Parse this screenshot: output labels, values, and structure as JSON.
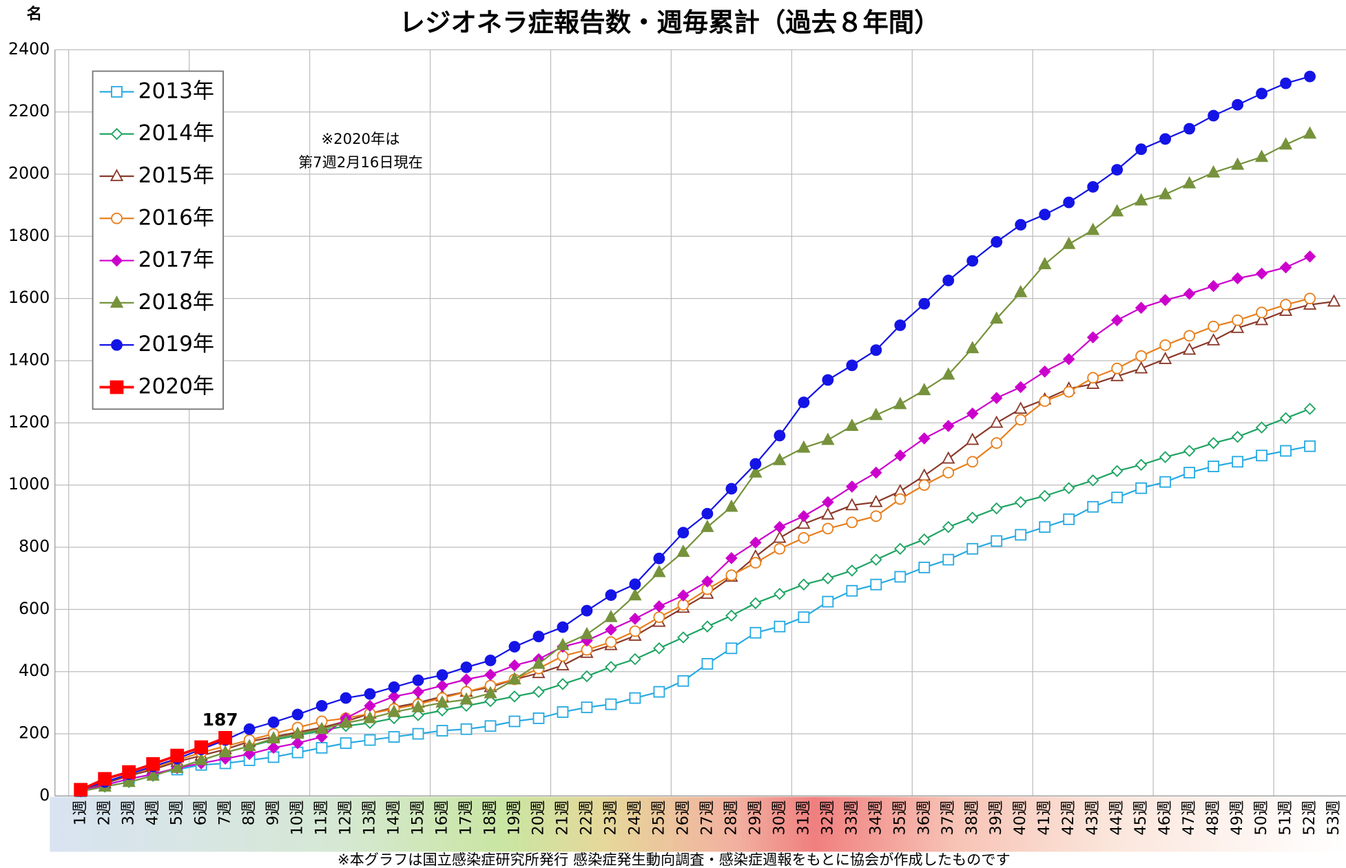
{
  "chart_data": {
    "type": "line",
    "title": "レジオネラ症報告数・週毎累計（過去８年間）",
    "y_unit": "名",
    "annotation": [
      "※2020年は",
      "第7週2月16日現在"
    ],
    "footnote": "※本グラフは国立感染症研究所発行 感染症発生動向調査・感染症週報をもとに協会が作成したものです",
    "categories": [
      "1週",
      "2週",
      "3週",
      "4週",
      "5週",
      "6週",
      "7週",
      "8週",
      "9週",
      "10週",
      "11週",
      "12週",
      "13週",
      "14週",
      "15週",
      "16週",
      "17週",
      "18週",
      "19週",
      "20週",
      "21週",
      "22週",
      "23週",
      "24週",
      "25週",
      "26週",
      "27週",
      "28週",
      "29週",
      "30週",
      "31週",
      "32週",
      "33週",
      "34週",
      "35週",
      "36週",
      "37週",
      "38週",
      "39週",
      "40週",
      "41週",
      "42週",
      "43週",
      "44週",
      "45週",
      "46週",
      "47週",
      "48週",
      "49週",
      "50週",
      "51週",
      "52週",
      "53週"
    ],
    "ylim": [
      0,
      2400
    ],
    "yticks": [
      0,
      200,
      400,
      600,
      800,
      1000,
      1200,
      1400,
      1600,
      1800,
      2000,
      2200,
      2400
    ],
    "grid": true,
    "legend": "upper left",
    "series": [
      {
        "name": "2013年",
        "color": "#29abe2",
        "marker": "square",
        "filled": false,
        "values": [
          15,
          35,
          55,
          70,
          85,
          100,
          105,
          115,
          125,
          140,
          155,
          170,
          180,
          190,
          200,
          210,
          215,
          225,
          240,
          250,
          270,
          285,
          295,
          315,
          335,
          370,
          425,
          475,
          525,
          545,
          575,
          625,
          660,
          680,
          705,
          735,
          760,
          795,
          820,
          840,
          865,
          890,
          930,
          960,
          990,
          1010,
          1040,
          1060,
          1075,
          1095,
          1110,
          1125,
          null
        ]
      },
      {
        "name": "2014年",
        "color": "#1fa463",
        "marker": "diamond",
        "filled": false,
        "values": [
          15,
          30,
          45,
          65,
          90,
          115,
          140,
          160,
          180,
          195,
          210,
          225,
          235,
          250,
          260,
          275,
          290,
          305,
          320,
          335,
          360,
          385,
          415,
          440,
          475,
          510,
          545,
          580,
          620,
          650,
          680,
          700,
          725,
          760,
          795,
          825,
          865,
          895,
          925,
          945,
          965,
          990,
          1015,
          1045,
          1065,
          1090,
          1110,
          1135,
          1155,
          1185,
          1215,
          1245,
          null
        ]
      },
      {
        "name": "2015年",
        "color": "#8b3a2a",
        "marker": "triangle",
        "filled": false,
        "values": [
          18,
          40,
          65,
          85,
          110,
          130,
          150,
          175,
          190,
          205,
          220,
          240,
          265,
          285,
          300,
          320,
          335,
          350,
          375,
          395,
          420,
          460,
          485,
          515,
          560,
          605,
          650,
          705,
          770,
          830,
          875,
          905,
          935,
          945,
          980,
          1030,
          1085,
          1145,
          1200,
          1245,
          1275,
          1310,
          1325,
          1350,
          1375,
          1405,
          1435,
          1465,
          1505,
          1530,
          1560,
          1580,
          1590
        ]
      },
      {
        "name": "2016年",
        "color": "#e8801e",
        "marker": "circle",
        "filled": false,
        "values": [
          18,
          45,
          70,
          90,
          115,
          140,
          160,
          180,
          200,
          220,
          240,
          250,
          265,
          280,
          295,
          315,
          335,
          355,
          375,
          410,
          450,
          470,
          495,
          530,
          575,
          615,
          665,
          710,
          750,
          795,
          830,
          860,
          880,
          900,
          955,
          1000,
          1040,
          1075,
          1135,
          1210,
          1270,
          1300,
          1345,
          1375,
          1415,
          1450,
          1480,
          1510,
          1530,
          1555,
          1580,
          1600,
          null
        ]
      },
      {
        "name": "2017年",
        "color": "#cc00cc",
        "marker": "diamond",
        "filled": true,
        "values": [
          15,
          35,
          55,
          70,
          90,
          105,
          120,
          135,
          155,
          170,
          190,
          250,
          290,
          320,
          335,
          355,
          375,
          390,
          420,
          440,
          480,
          500,
          535,
          570,
          610,
          645,
          690,
          765,
          815,
          865,
          900,
          945,
          995,
          1040,
          1095,
          1150,
          1190,
          1230,
          1280,
          1315,
          1365,
          1405,
          1475,
          1530,
          1570,
          1595,
          1615,
          1640,
          1665,
          1680,
          1700,
          1735,
          null
        ]
      },
      {
        "name": "2018年",
        "color": "#76923c",
        "marker": "triangle",
        "filled": true,
        "values": [
          15,
          30,
          45,
          65,
          90,
          115,
          140,
          160,
          185,
          200,
          215,
          235,
          250,
          270,
          285,
          300,
          310,
          330,
          375,
          425,
          485,
          520,
          575,
          645,
          720,
          785,
          865,
          930,
          1040,
          1080,
          1120,
          1145,
          1190,
          1225,
          1260,
          1305,
          1355,
          1440,
          1535,
          1620,
          1710,
          1775,
          1820,
          1880,
          1915,
          1935,
          1970,
          2005,
          2030,
          2055,
          2095,
          2130,
          null
        ]
      },
      {
        "name": "2019年",
        "color": "#1414e6",
        "marker": "circle",
        "filled": true,
        "values": [
          20,
          45,
          70,
          95,
          120,
          150,
          180,
          215,
          237,
          262,
          290,
          315,
          328,
          350,
          372,
          389,
          414,
          436,
          480,
          513,
          543,
          596,
          646,
          681,
          764,
          847,
          908,
          988,
          1068,
          1159,
          1266,
          1338,
          1385,
          1434,
          1514,
          1583,
          1658,
          1721,
          1782,
          1837,
          1870,
          1909,
          1959,
          2014,
          2080,
          2113,
          2146,
          2188,
          2223,
          2259,
          2292,
          2314,
          null
        ]
      },
      {
        "name": "2020年",
        "color": "#ff0000",
        "marker": "square",
        "filled": true,
        "label_last": true,
        "values": [
          20,
          55,
          77,
          103,
          130,
          157,
          187,
          null,
          null,
          null,
          null,
          null,
          null,
          null,
          null,
          null,
          null,
          null,
          null,
          null,
          null,
          null,
          null,
          null,
          null,
          null,
          null,
          null,
          null,
          null,
          null,
          null,
          null,
          null,
          null,
          null,
          null,
          null,
          null,
          null,
          null,
          null,
          null,
          null,
          null,
          null,
          null,
          null,
          null,
          null,
          null,
          null,
          null
        ]
      }
    ]
  }
}
